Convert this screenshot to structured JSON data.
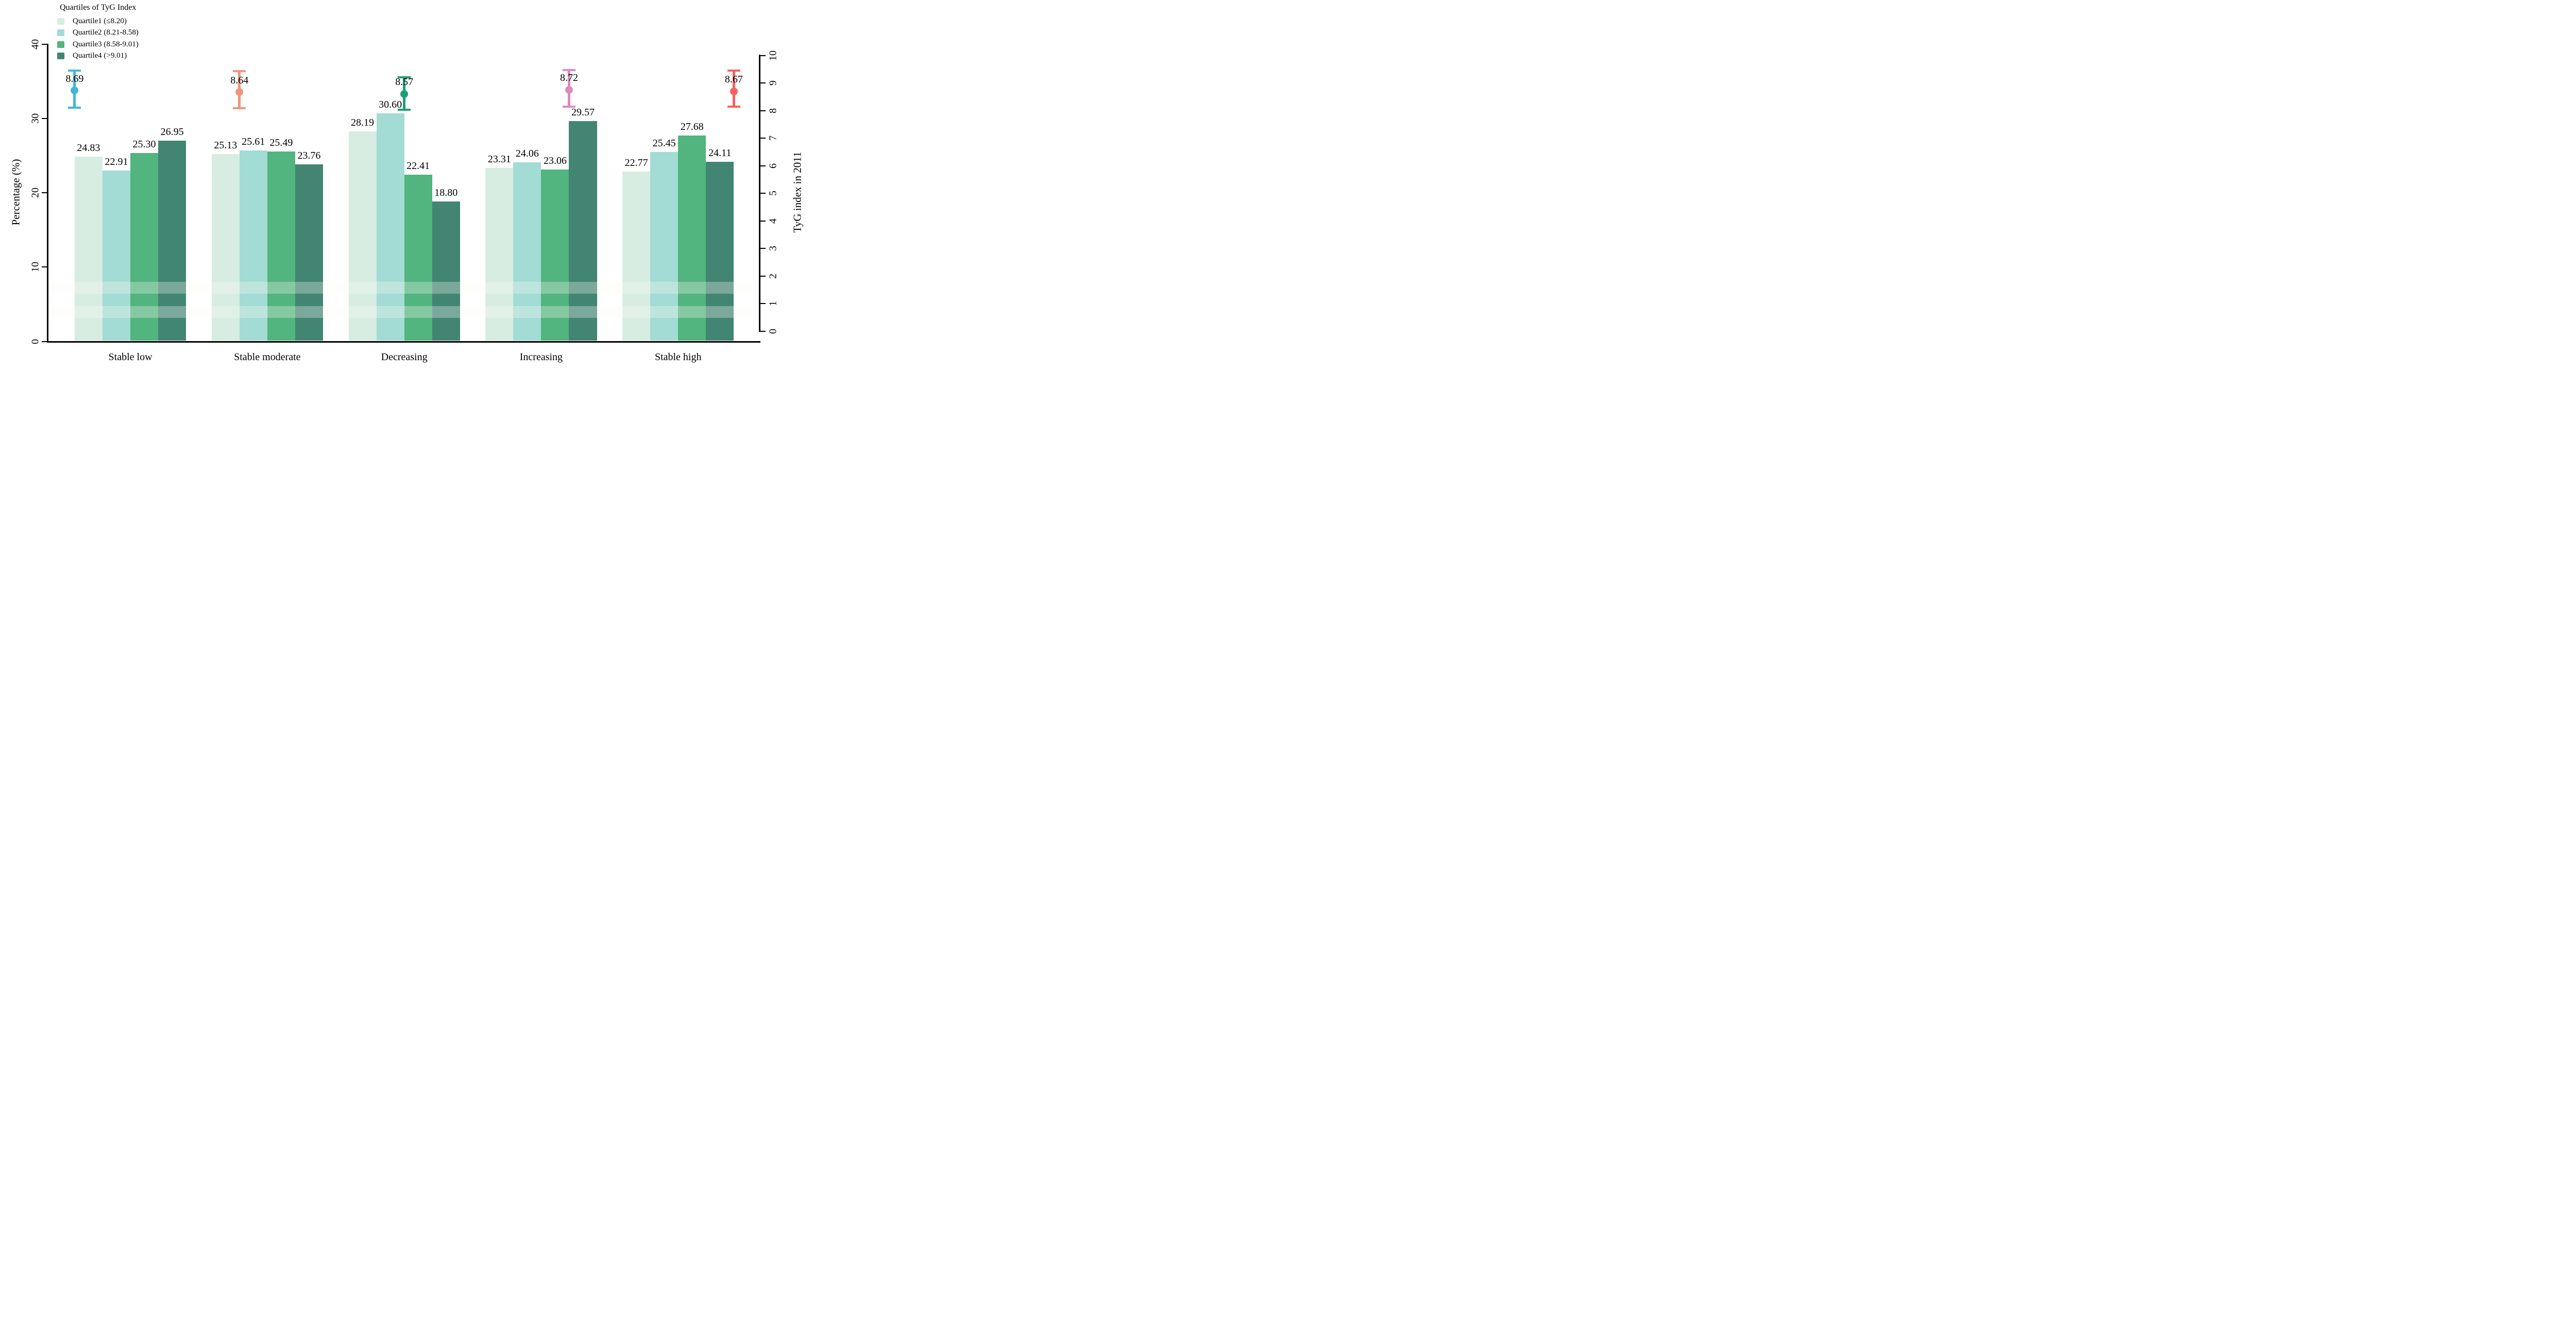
{
  "chart_data": {
    "type": "bar",
    "title": "",
    "categories": [
      "Stable low",
      "Stable moderate",
      "Decreasing",
      "Increasing",
      "Stable high"
    ],
    "series": [
      {
        "name": "Quartile1 (≤8.20)",
        "color": "#d7ede1",
        "values": [
          24.83,
          25.13,
          28.19,
          23.31,
          22.77
        ]
      },
      {
        "name": "Quartile2 (8.21-8.58)",
        "color": "#a2dcd4",
        "values": [
          22.91,
          25.61,
          30.6,
          24.06,
          25.45
        ]
      },
      {
        "name": "Quartile3 (8.58-9.01)",
        "color": "#52b47e",
        "values": [
          25.3,
          25.49,
          22.41,
          23.06,
          27.68
        ]
      },
      {
        "name": "Quartile4 (>9.01)",
        "color": "#428573",
        "values": [
          26.95,
          23.76,
          18.8,
          29.57,
          24.11
        ]
      }
    ],
    "error_series": {
      "name": "TyG index in 2011",
      "points": [
        {
          "category": "Stable low",
          "mean": 8.69,
          "lo": 8.08,
          "hi": 9.42,
          "color": "#41b6d9"
        },
        {
          "category": "Stable moderate",
          "mean": 8.64,
          "lo": 8.06,
          "hi": 9.4,
          "color": "#f0957b"
        },
        {
          "category": "Decreasing",
          "mean": 8.57,
          "lo": 7.99,
          "hi": 9.17,
          "color": "#1b9e77"
        },
        {
          "category": "Increasing",
          "mean": 8.72,
          "lo": 8.1,
          "hi": 9.43,
          "color": "#dd8abf"
        },
        {
          "category": "Stable high",
          "mean": 8.67,
          "lo": 8.1,
          "hi": 9.42,
          "color": "#f9605f"
        }
      ]
    },
    "left_axis": {
      "label": "Percentage (%)",
      "ticks": [
        0,
        10,
        20,
        30,
        40
      ],
      "range": [
        0,
        40
      ],
      "grid": false
    },
    "right_axis": {
      "label": "TyG index in 2011",
      "ticks": [
        0,
        1,
        2,
        3,
        4,
        5,
        6,
        7,
        8,
        9,
        10
      ],
      "range": [
        0,
        10
      ],
      "grid": false
    },
    "legend": {
      "title": "Quartiles of TyG Index",
      "position": "top-left"
    }
  }
}
